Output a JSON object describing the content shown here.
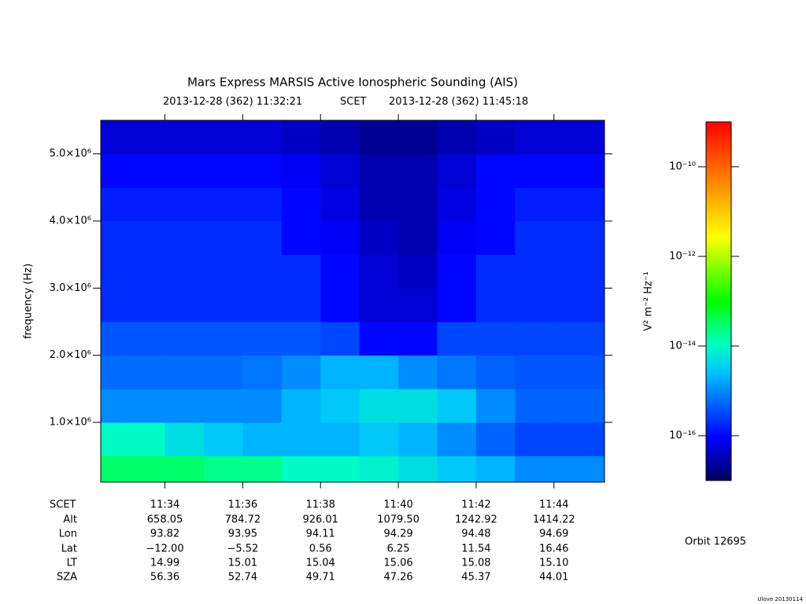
{
  "chart_data": {
    "type": "heatmap",
    "title": "Mars Express MARSIS Active Ionospheric Sounding (AIS)",
    "subtitle": {
      "start_date": "2013-12-28 (362)",
      "start_time": "11:32:21",
      "time_system": "SCET",
      "end_date": "2013-12-28 (362)",
      "end_time": "11:45:18"
    },
    "y_label": "frequency (Hz)",
    "ylim": [
      110000,
      5500000
    ],
    "yticks": [
      {
        "value": 1000000,
        "label": "1.0×10⁶"
      },
      {
        "value": 2000000,
        "label": "2.0×10⁶"
      },
      {
        "value": 3000000,
        "label": "3.0×10⁶"
      },
      {
        "value": 4000000,
        "label": "4.0×10⁶"
      },
      {
        "value": 5000000,
        "label": "5.0×10⁶"
      }
    ],
    "xticks": [
      "11:34",
      "11:36",
      "11:38",
      "11:40",
      "11:42",
      "11:44"
    ],
    "x_bins": [
      "11:32",
      "11:33",
      "11:34",
      "11:35",
      "11:36",
      "11:37",
      "11:38",
      "11:39",
      "11:40",
      "11:41",
      "11:42",
      "11:43",
      "11:44",
      "11:45",
      "11:46"
    ],
    "y_bins": [
      0,
      500000,
      1000000,
      1500000,
      2000000,
      2500000,
      3000000,
      3500000,
      4000000,
      4500000,
      5000000,
      5500000
    ],
    "values": [
      [
        3e-14,
        3e-14,
        3e-14,
        2e-14,
        2e-14,
        1e-14,
        1e-14,
        8e-15,
        5e-15,
        3e-15,
        2e-15,
        1e-15,
        1e-15,
        1e-15
      ],
      [
        1e-14,
        1e-14,
        5e-15,
        3e-15,
        2e-15,
        2e-15,
        2e-15,
        3e-15,
        2e-15,
        1e-15,
        5e-16,
        3e-16,
        3e-16,
        3e-16
      ],
      [
        1e-15,
        1e-15,
        1e-15,
        1e-15,
        1e-15,
        2e-15,
        3e-15,
        5e-15,
        5e-15,
        3e-15,
        1e-15,
        5e-16,
        5e-16,
        5e-16
      ],
      [
        6e-16,
        6e-16,
        6e-16,
        6e-16,
        7e-16,
        1e-15,
        2e-15,
        2e-15,
        1e-15,
        7e-16,
        5e-16,
        4e-16,
        4e-16,
        4e-16
      ],
      [
        4e-16,
        4e-16,
        4e-16,
        4e-16,
        4e-16,
        4e-16,
        3e-16,
        1e-16,
        1e-16,
        3e-16,
        3e-16,
        3e-16,
        3e-16,
        3e-16
      ],
      [
        2e-16,
        2e-16,
        2e-16,
        2e-16,
        2e-16,
        2e-16,
        1e-16,
        5e-17,
        5e-17,
        1e-16,
        2e-16,
        2e-16,
        2e-16,
        2e-16
      ],
      [
        2e-16,
        2e-16,
        2e-16,
        2e-16,
        2e-16,
        2e-16,
        1e-16,
        5e-17,
        4e-17,
        1e-16,
        2e-16,
        2e-16,
        2e-16,
        2e-16
      ],
      [
        2e-16,
        2e-16,
        2e-16,
        2e-16,
        2e-16,
        1e-16,
        8e-17,
        4e-17,
        3e-17,
        8e-17,
        1e-16,
        2e-16,
        2e-16,
        2e-16
      ],
      [
        1.5e-16,
        1.5e-16,
        1.5e-16,
        1.5e-16,
        1.5e-16,
        1e-16,
        6e-17,
        3e-17,
        3e-17,
        6e-17,
        1e-16,
        1.5e-16,
        1.5e-16,
        1.5e-16
      ],
      [
        1e-16,
        1e-16,
        1e-16,
        1e-16,
        1e-16,
        8e-17,
        5e-17,
        3e-17,
        3e-17,
        5e-17,
        1e-16,
        1e-16,
        1e-16,
        1e-16
      ],
      [
        5e-17,
        5e-17,
        5e-17,
        5e-17,
        5e-17,
        4e-17,
        3e-17,
        2e-17,
        2e-17,
        3e-17,
        4e-17,
        5e-17,
        5e-17,
        5e-17
      ]
    ],
    "colorbar": {
      "label": "V² m⁻² Hz⁻¹",
      "log": true,
      "lim": [
        1e-17,
        1e-09
      ],
      "ticks": [
        {
          "value": 1e-10,
          "label": "10⁻¹⁰"
        },
        {
          "value": 1e-12,
          "label": "10⁻¹²"
        },
        {
          "value": 1e-14,
          "label": "10⁻¹⁴"
        },
        {
          "value": 1e-16,
          "label": "10⁻¹⁶"
        }
      ]
    },
    "ephemeris": {
      "time_label": "SCET",
      "rows": [
        {
          "label": "Alt",
          "values": [
            "658.05",
            "784.72",
            "926.01",
            "1079.50",
            "1242.92",
            "1414.22"
          ]
        },
        {
          "label": "Lon",
          "values": [
            "93.82",
            "93.95",
            "94.11",
            "94.29",
            "94.48",
            "94.69"
          ]
        },
        {
          "label": "Lat",
          "values": [
            "−12.00",
            "−5.52",
            "0.56",
            "6.25",
            "11.54",
            "16.46"
          ]
        },
        {
          "label": "LT",
          "values": [
            "14.99",
            "15.01",
            "15.04",
            "15.06",
            "15.08",
            "15.10"
          ]
        },
        {
          "label": "SZA",
          "values": [
            "56.36",
            "52.74",
            "49.71",
            "47.26",
            "45.37",
            "44.01"
          ]
        }
      ]
    },
    "orbit": "Orbit 12695"
  },
  "footer": "Ulove 20130114"
}
